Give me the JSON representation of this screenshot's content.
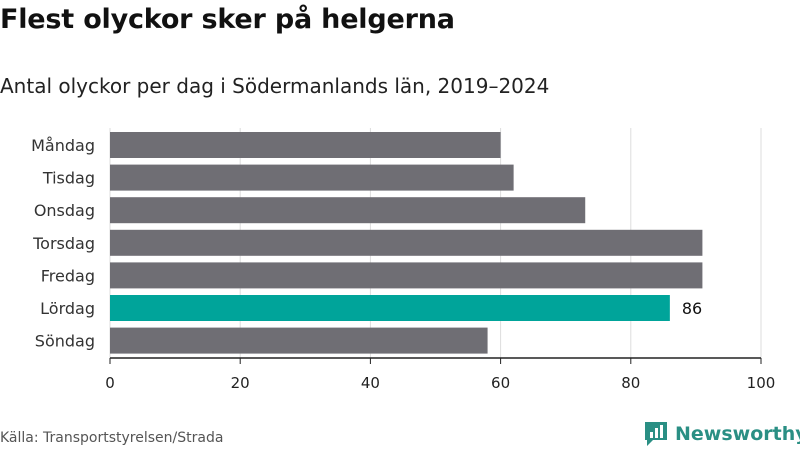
{
  "title": "Flest olyckor sker på helgerna",
  "subtitle": "Antal olyckor per dag i Södermanlands län, 2019–2024",
  "source": "Källa: Transportstyrelsen/Strada",
  "brand": "Newsworthy",
  "colors": {
    "bar_default": "#6f6e74",
    "bar_highlight": "#00a49a",
    "brand": "#2a8f84",
    "grid": "#dddddd"
  },
  "chart_data": {
    "type": "bar",
    "orientation": "horizontal",
    "categories": [
      "Måndag",
      "Tisdag",
      "Onsdag",
      "Torsdag",
      "Fredag",
      "Lördag",
      "Söndag"
    ],
    "values": [
      60,
      62,
      73,
      91,
      91,
      86,
      58
    ],
    "highlight": "Lördag",
    "data_labels": {
      "Lördag": "86"
    },
    "xlim": [
      0,
      100
    ],
    "x_ticks": [
      0,
      20,
      40,
      60,
      80,
      100
    ],
    "xlabel": "",
    "ylabel": "",
    "grid": true
  }
}
